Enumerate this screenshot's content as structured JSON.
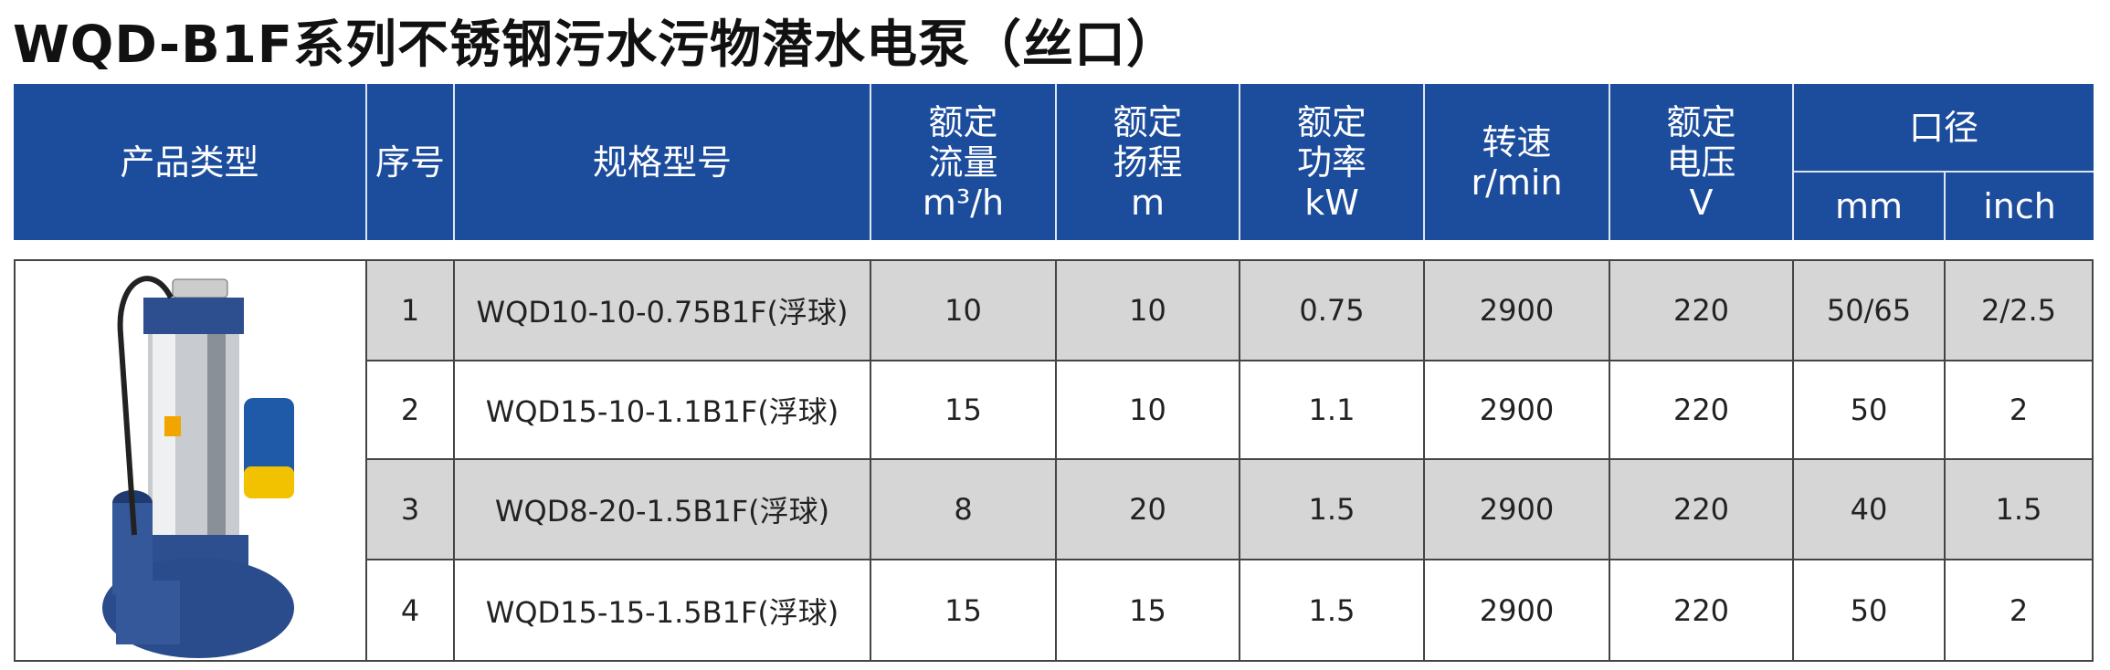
{
  "title": "WQD-B1F系列不锈钢污水污物潜水电泵（丝口）",
  "header": {
    "columns": [
      [
        "产品类型"
      ],
      [
        "序号"
      ],
      [
        "规格型号"
      ],
      [
        "额定",
        "流量",
        "m³/h"
      ],
      [
        "额定",
        "扬程",
        "m"
      ],
      [
        "额定",
        "功率",
        "kW"
      ],
      [
        "转速",
        "r/min"
      ],
      [
        "额定",
        "电压",
        "V"
      ]
    ],
    "group": "口径",
    "subcolumns": [
      "mm",
      "inch"
    ]
  },
  "table": {
    "rows": [
      [
        "1",
        "WQD10-10-0.75B1F(浮球)",
        "10",
        "10",
        "0.75",
        "2900",
        "220",
        "50/65",
        "2/2.5"
      ],
      [
        "2",
        "WQD15-10-1.1B1F(浮球)",
        "15",
        "10",
        "1.1",
        "2900",
        "220",
        "50",
        "2"
      ],
      [
        "3",
        "WQD8-20-1.5B1F(浮球)",
        "8",
        "20",
        "1.5",
        "2900",
        "220",
        "40",
        "1.5"
      ],
      [
        "4",
        "WQD15-15-1.5B1F(浮球)",
        "15",
        "15",
        "1.5",
        "2900",
        "220",
        "50",
        "2"
      ]
    ]
  }
}
